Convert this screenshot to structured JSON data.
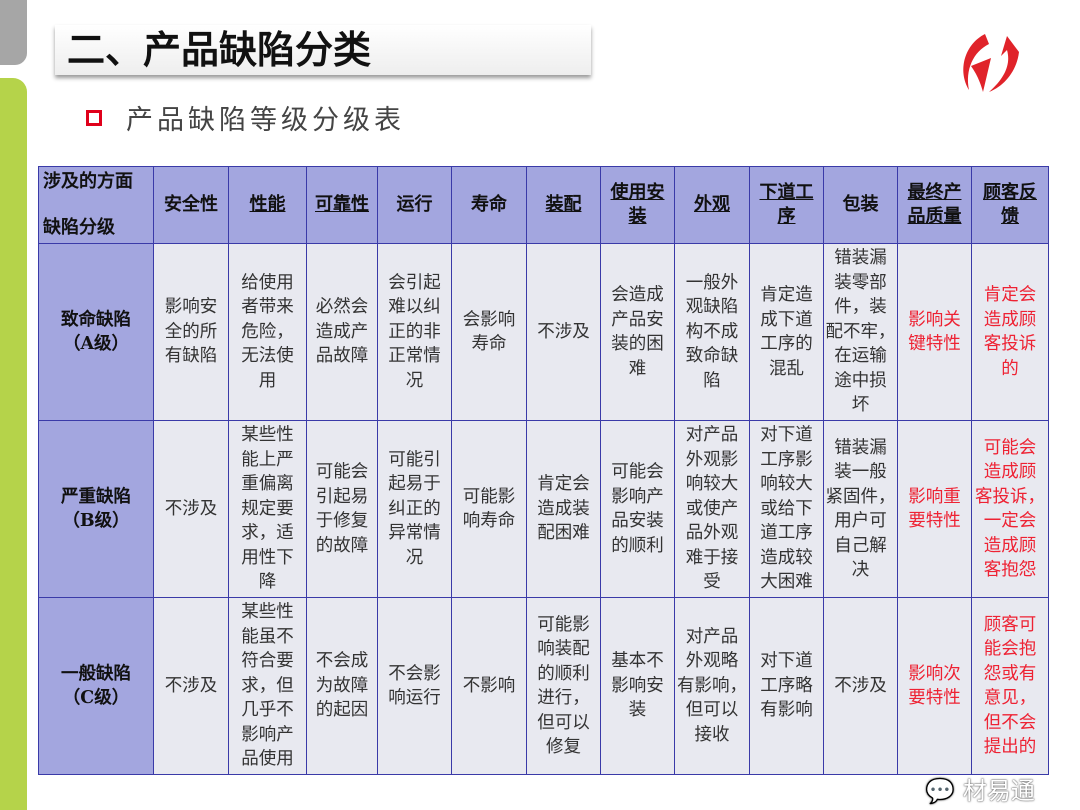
{
  "slide": {
    "title": "二、产品缺陷分类",
    "subtitle": "产品缺陷等级分级表",
    "accent": "#e0001b",
    "watermark": "材易通"
  },
  "table": {
    "corner_top": "涉及的方面",
    "corner_bottom": "缺陷分级",
    "headers": [
      {
        "label": "安全性",
        "underline": false
      },
      {
        "label": "性能",
        "underline": true
      },
      {
        "label": "可靠性",
        "underline": true
      },
      {
        "label": "运行",
        "underline": false
      },
      {
        "label": "寿命",
        "underline": false
      },
      {
        "label": "装配",
        "underline": true
      },
      {
        "label": "使用安\n装",
        "underline": true
      },
      {
        "label": "外观",
        "underline": true
      },
      {
        "label": "下道工\n序",
        "underline": true
      },
      {
        "label": "包装",
        "underline": false
      },
      {
        "label": "最终产\n品质量",
        "underline": true
      },
      {
        "label": "顾客反\n馈",
        "underline": true
      }
    ],
    "rows": [
      {
        "level": "致命缺陷\n（A级）",
        "cells": [
          "影响安\n全的所\n有缺陷",
          "给使用\n者带来\n危险，\n无法使\n用",
          "必然会\n造成产\n品故障",
          "会引起\n难以纠\n正的非\n正常情\n况",
          "会影响\n寿命",
          "不涉及",
          "会造成\n产品安\n装的困\n难",
          "一般外\n观缺陷\n构不成\n致命缺\n陷",
          "肯定造\n成下道\n工序的\n混乱",
          "错装漏\n装零部\n件，装\n配不牢，\n在运输\n途中损\n坏",
          "影响关\n键特性",
          "肯定会\n造成顾\n客投诉\n的"
        ]
      },
      {
        "level": "严重缺陷\n（B级）",
        "cells": [
          "不涉及",
          "某些性\n能上严\n重偏离\n规定要\n求，适\n用性下\n降",
          "可能会\n引起易\n于修复\n的故障",
          "可能引\n起易于\n纠正的\n异常情\n况",
          "可能影\n响寿命",
          "肯定会\n造成装\n配困难",
          "可能会\n影响产\n品安装\n的顺利",
          "对产品\n外观影\n响较大\n或使产\n品外观\n难于接\n受",
          "对下道\n工序影\n响较大\n或给下\n道工序\n造成较\n大困难",
          "错装漏\n装一般\n紧固件，\n用户可\n自己解\n决",
          "影响重\n要特性",
          "可能会\n造成顾\n客投诉，\n一定会\n造成顾\n客抱怨"
        ]
      },
      {
        "level": "一般缺陷\n（C级）",
        "cells": [
          "不涉及",
          "某些性\n能虽不\n符合要\n求，但\n几乎不\n影响产\n品使用",
          "不会成\n为故障\n的起因",
          "不会影\n响运行",
          "不影响",
          "可能影\n响装配\n的顺利\n进行，\n但可以\n修复",
          "基本不\n影响安\n装",
          "对产品\n外观略\n有影响，\n但可以\n接收",
          "对下道\n工序略\n有影响",
          "不涉及",
          "影响次\n要特性",
          "顾客可\n能会抱\n怨或有\n意见，\n但不会\n提出的"
        ]
      }
    ],
    "red_columns": [
      10,
      11
    ],
    "header_bg": "#a3a6df",
    "cell_bg": "#e8e9f0",
    "border": "#3a3aa8",
    "red_text": "#ee2233"
  }
}
